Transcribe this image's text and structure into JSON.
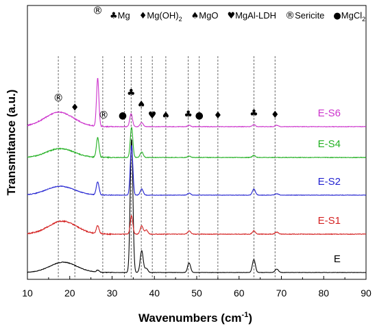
{
  "chart_data": {
    "type": "line",
    "xlabel_main": "Wavenumbers (cm",
    "xlabel_sup": "-1",
    "xlabel_tail": ")",
    "ylabel": "Transmitance (a.u.)",
    "xlim": [
      10,
      90
    ],
    "xticks": [
      "10",
      "20",
      "30",
      "40",
      "50",
      "60",
      "70",
      "80",
      "90"
    ],
    "legend": [
      {
        "symbol": "♣",
        "text": "Mg"
      },
      {
        "symbol": "♦",
        "text": "Mg(OH)",
        "sub": "2"
      },
      {
        "symbol": "♠",
        "text": "MgO"
      },
      {
        "symbol": "♥",
        "text": "MgAl-LDH"
      },
      {
        "symbol": "®",
        "text": "Sericite"
      },
      {
        "symbol": "●",
        "text": "MgCl",
        "sub": "2"
      }
    ],
    "reference_lines": [
      17.3,
      21.2,
      27.8,
      32.9,
      34.5,
      36.9,
      39.5,
      42.7,
      48.0,
      50.6,
      55.0,
      63.5,
      68.5
    ],
    "peak_markers": [
      {
        "symbol": "®",
        "x": 17.3,
        "series": "E-S6",
        "above": 16
      },
      {
        "symbol": "♦",
        "x": 21.2,
        "series": "E-S6",
        "above": 12
      },
      {
        "symbol": "®",
        "x": 26.6,
        "series": "E-S6",
        "above": 94
      },
      {
        "symbol": "®",
        "x": 28.0,
        "series": "E-S6",
        "above": 12
      },
      {
        "symbol": "●",
        "x": 32.5,
        "series": "E-S6",
        "above": 12
      },
      {
        "symbol": "♣",
        "x": 34.5,
        "series": "E-S6",
        "above": 26
      },
      {
        "symbol": "♠",
        "x": 36.9,
        "series": "E-S6",
        "above": 22
      },
      {
        "symbol": "♥",
        "x": 39.5,
        "series": "E-S6",
        "above": 12
      },
      {
        "symbol": "♠",
        "x": 42.7,
        "series": "E-S6",
        "above": 12
      },
      {
        "symbol": "♣",
        "x": 48.0,
        "series": "E-S6",
        "above": 12
      },
      {
        "symbol": "●",
        "x": 50.6,
        "series": "E-S6",
        "above": 12
      },
      {
        "symbol": "♦",
        "x": 55.0,
        "series": "E-S6",
        "above": 12
      },
      {
        "symbol": "♣",
        "x": 63.5,
        "series": "E-S6",
        "above": 12
      },
      {
        "symbol": "♦",
        "x": 68.5,
        "series": "E-S6",
        "above": 12
      }
    ],
    "series": [
      {
        "name": "E",
        "color": "#000000",
        "offset": 0,
        "hump": [
          18.5,
          3.2,
          15
        ],
        "noise": 0.8,
        "peaks": [
          [
            34.6,
            195,
            0.32
          ],
          [
            37.0,
            32,
            0.35
          ],
          [
            38.1,
            6,
            0.35
          ],
          [
            48.2,
            14,
            0.35
          ],
          [
            63.5,
            19,
            0.35
          ],
          [
            68.9,
            5,
            0.4
          ],
          [
            26.6,
            3,
            0.3
          ]
        ]
      },
      {
        "name": "E-S1",
        "color": "#d42020",
        "offset": 56,
        "hump": [
          18.3,
          3.3,
          19
        ],
        "noise": 1.6,
        "peaks": [
          [
            26.6,
            12,
            0.32
          ],
          [
            34.6,
            27,
            0.3
          ],
          [
            37.0,
            12,
            0.35
          ],
          [
            38.1,
            6,
            0.35
          ],
          [
            48.2,
            5,
            0.35
          ],
          [
            63.5,
            5,
            0.35
          ],
          [
            68.9,
            3,
            0.4
          ]
        ]
      },
      {
        "name": "E-S2",
        "color": "#1f1fd0",
        "offset": 113,
        "hump": [
          17.8,
          3.3,
          13
        ],
        "noise": 1.0,
        "peaks": [
          [
            26.6,
            19,
            0.32
          ],
          [
            34.6,
            73,
            0.3
          ],
          [
            37.0,
            9,
            0.35
          ],
          [
            48.2,
            3,
            0.35
          ],
          [
            63.5,
            9,
            0.35
          ],
          [
            68.9,
            2,
            0.4
          ]
        ]
      },
      {
        "name": "E-S4",
        "color": "#22b022",
        "offset": 168,
        "hump": [
          17.8,
          3.2,
          13
        ],
        "noise": 1.4,
        "peaks": [
          [
            26.6,
            29,
            0.3
          ],
          [
            34.6,
            44,
            0.3
          ],
          [
            37.0,
            8,
            0.35
          ],
          [
            48.2,
            2,
            0.35
          ],
          [
            63.5,
            3,
            0.35
          ]
        ]
      },
      {
        "name": "E-S6",
        "color": "#cc33cc",
        "offset": 213,
        "hump": [
          17.5,
          3.4,
          21
        ],
        "noise": 1.4,
        "peaks": [
          [
            26.6,
            70,
            0.28
          ],
          [
            34.5,
            19,
            0.32
          ],
          [
            37.0,
            6,
            0.35
          ],
          [
            48.2,
            2,
            0.35
          ],
          [
            63.5,
            3,
            0.35
          ],
          [
            68.9,
            2,
            0.4
          ]
        ]
      }
    ]
  }
}
